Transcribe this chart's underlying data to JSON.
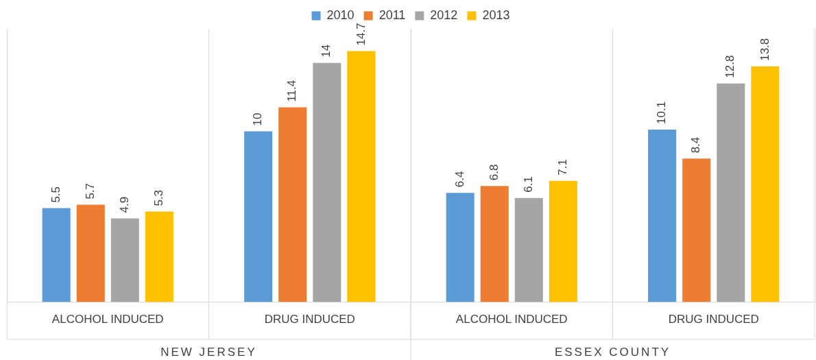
{
  "chart_data": {
    "type": "bar",
    "categories": [
      "ALCOHOL INDUCED",
      "DRUG INDUCED",
      "ALCOHOL INDUCED",
      "DRUG INDUCED"
    ],
    "series": [
      {
        "name": "2010",
        "color": "#5b9bd5",
        "values": [
          5.5,
          10,
          6.4,
          10.1
        ]
      },
      {
        "name": "2011",
        "color": "#ed7d31",
        "values": [
          5.7,
          11.4,
          6.8,
          8.4
        ]
      },
      {
        "name": "2012",
        "color": "#a5a5a5",
        "values": [
          4.9,
          14,
          6.1,
          12.8
        ]
      },
      {
        "name": "2013",
        "color": "#ffc000",
        "values": [
          5.3,
          14.7,
          7.1,
          13.8
        ]
      }
    ],
    "annotations": [
      "NEW JERSEY",
      "ESSEX COUNTY"
    ],
    "data_labels": true,
    "grid": "x",
    "legend": "top",
    "tick_labels": "x"
  }
}
